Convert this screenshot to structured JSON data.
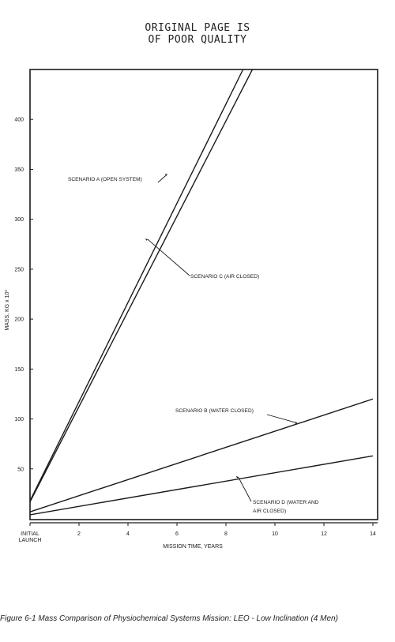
{
  "header": {
    "stamp_line1": "ORIGINAL PAGE IS",
    "stamp_line2": "OF POOR QUALITY"
  },
  "caption": "Figure 6-1  Mass Comparison of Physiochemical Systems Mission:  LEO - Low Inclination (4 Men)",
  "chart_data": {
    "type": "line",
    "title": "",
    "xlabel": "MISSION TIME, YEARS",
    "ylabel": "MASS, KG x 10³",
    "xlim": [
      0,
      14
    ],
    "ylim": [
      0,
      450
    ],
    "x_ticks": [
      {
        "value": 0,
        "label": "INITIAL"
      },
      {
        "value": 2,
        "label": "2"
      },
      {
        "value": 4,
        "label": "4"
      },
      {
        "value": 6,
        "label": "6"
      },
      {
        "value": 8,
        "label": "8"
      },
      {
        "value": 10,
        "label": "10"
      },
      {
        "value": 12,
        "label": "12"
      },
      {
        "value": 14,
        "label": "14"
      }
    ],
    "x_tick_sublabel": "LAUNCH",
    "y_ticks": [
      50,
      100,
      150,
      200,
      250,
      300,
      350,
      400
    ],
    "grid": false,
    "series": [
      {
        "name": "SCENARIO A (OPEN SYSTEM)",
        "x": [
          0,
          9.1
        ],
        "y": [
          18,
          470
        ]
      },
      {
        "name": "SCENARIO C (AIR CLOSED)",
        "x": [
          0,
          9.5
        ],
        "y": [
          17,
          470
        ]
      },
      {
        "name": "SCENARIO B (WATER CLOSED)",
        "x": [
          0,
          14
        ],
        "y": [
          7,
          120
        ]
      },
      {
        "name": "SCENARIO D (WATER AND AIR CLOSED)",
        "x": [
          0,
          14
        ],
        "y": [
          4,
          63
        ]
      }
    ],
    "annotations": [
      {
        "series": 0,
        "lines": [
          "SCENARIO A (OPEN SYSTEM)"
        ],
        "point": [
          5.6,
          345
        ]
      },
      {
        "series": 1,
        "lines": [
          "SCENARIO C (AIR CLOSED)"
        ],
        "point": [
          4.8,
          280
        ]
      },
      {
        "series": 2,
        "lines": [
          "SCENARIO B (WATER CLOSED)"
        ],
        "point": [
          10.9,
          96
        ]
      },
      {
        "series": 3,
        "lines": [
          "SCENARIO D (WATER AND",
          "AIR CLOSED)"
        ],
        "point": [
          8.5,
          42
        ]
      }
    ]
  }
}
